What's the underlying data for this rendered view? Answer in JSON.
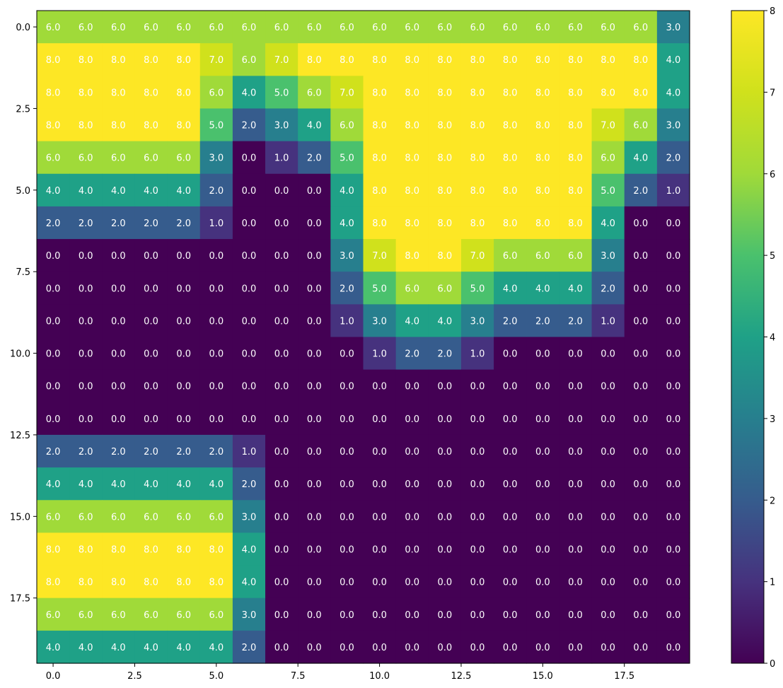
{
  "chart_data": {
    "type": "heatmap",
    "title": "",
    "xlabel": "",
    "ylabel": "",
    "colormap": "viridis",
    "vmin": 0,
    "vmax": 8,
    "annotation_color": "#ffffff",
    "x_ticks": [
      "0.0",
      "2.5",
      "5.0",
      "7.5",
      "10.0",
      "12.5",
      "15.0",
      "17.5"
    ],
    "y_ticks": [
      "0.0",
      "2.5",
      "5.0",
      "7.5",
      "10.0",
      "12.5",
      "15.0",
      "17.5"
    ],
    "colorbar_ticks": [
      "0",
      "1",
      "2",
      "3",
      "4",
      "5",
      "6",
      "7",
      "8"
    ],
    "values": [
      [
        6,
        6,
        6,
        6,
        6,
        6,
        6,
        6,
        6,
        6,
        6,
        6,
        6,
        6,
        6,
        6,
        6,
        6,
        6,
        3
      ],
      [
        8,
        8,
        8,
        8,
        8,
        7,
        6,
        7,
        8,
        8,
        8,
        8,
        8,
        8,
        8,
        8,
        8,
        8,
        8,
        4
      ],
      [
        8,
        8,
        8,
        8,
        8,
        6,
        4,
        5,
        6,
        7,
        8,
        8,
        8,
        8,
        8,
        8,
        8,
        8,
        8,
        4
      ],
      [
        8,
        8,
        8,
        8,
        8,
        5,
        2,
        3,
        4,
        6,
        8,
        8,
        8,
        8,
        8,
        8,
        8,
        7,
        6,
        3
      ],
      [
        6,
        6,
        6,
        6,
        6,
        3,
        0,
        1,
        2,
        5,
        8,
        8,
        8,
        8,
        8,
        8,
        8,
        6,
        4,
        2
      ],
      [
        4,
        4,
        4,
        4,
        4,
        2,
        0,
        0,
        0,
        4,
        8,
        8,
        8,
        8,
        8,
        8,
        8,
        5,
        2,
        1
      ],
      [
        2,
        2,
        2,
        2,
        2,
        1,
        0,
        0,
        0,
        4,
        8,
        8,
        8,
        8,
        8,
        8,
        8,
        4,
        0,
        0
      ],
      [
        0,
        0,
        0,
        0,
        0,
        0,
        0,
        0,
        0,
        3,
        7,
        8,
        8,
        7,
        6,
        6,
        6,
        3,
        0,
        0
      ],
      [
        0,
        0,
        0,
        0,
        0,
        0,
        0,
        0,
        0,
        2,
        5,
        6,
        6,
        5,
        4,
        4,
        4,
        2,
        0,
        0
      ],
      [
        0,
        0,
        0,
        0,
        0,
        0,
        0,
        0,
        0,
        1,
        3,
        4,
        4,
        3,
        2,
        2,
        2,
        1,
        0,
        0
      ],
      [
        0,
        0,
        0,
        0,
        0,
        0,
        0,
        0,
        0,
        0,
        1,
        2,
        2,
        1,
        0,
        0,
        0,
        0,
        0,
        0
      ],
      [
        0,
        0,
        0,
        0,
        0,
        0,
        0,
        0,
        0,
        0,
        0,
        0,
        0,
        0,
        0,
        0,
        0,
        0,
        0,
        0
      ],
      [
        0,
        0,
        0,
        0,
        0,
        0,
        0,
        0,
        0,
        0,
        0,
        0,
        0,
        0,
        0,
        0,
        0,
        0,
        0,
        0
      ],
      [
        2,
        2,
        2,
        2,
        2,
        2,
        1,
        0,
        0,
        0,
        0,
        0,
        0,
        0,
        0,
        0,
        0,
        0,
        0,
        0
      ],
      [
        4,
        4,
        4,
        4,
        4,
        4,
        2,
        0,
        0,
        0,
        0,
        0,
        0,
        0,
        0,
        0,
        0,
        0,
        0,
        0
      ],
      [
        6,
        6,
        6,
        6,
        6,
        6,
        3,
        0,
        0,
        0,
        0,
        0,
        0,
        0,
        0,
        0,
        0,
        0,
        0,
        0
      ],
      [
        8,
        8,
        8,
        8,
        8,
        8,
        4,
        0,
        0,
        0,
        0,
        0,
        0,
        0,
        0,
        0,
        0,
        0,
        0,
        0
      ],
      [
        8,
        8,
        8,
        8,
        8,
        8,
        4,
        0,
        0,
        0,
        0,
        0,
        0,
        0,
        0,
        0,
        0,
        0,
        0,
        0
      ],
      [
        6,
        6,
        6,
        6,
        6,
        6,
        3,
        0,
        0,
        0,
        0,
        0,
        0,
        0,
        0,
        0,
        0,
        0,
        0,
        0
      ],
      [
        4,
        4,
        4,
        4,
        4,
        4,
        2,
        0,
        0,
        0,
        0,
        0,
        0,
        0,
        0,
        0,
        0,
        0,
        0,
        0
      ]
    ]
  }
}
